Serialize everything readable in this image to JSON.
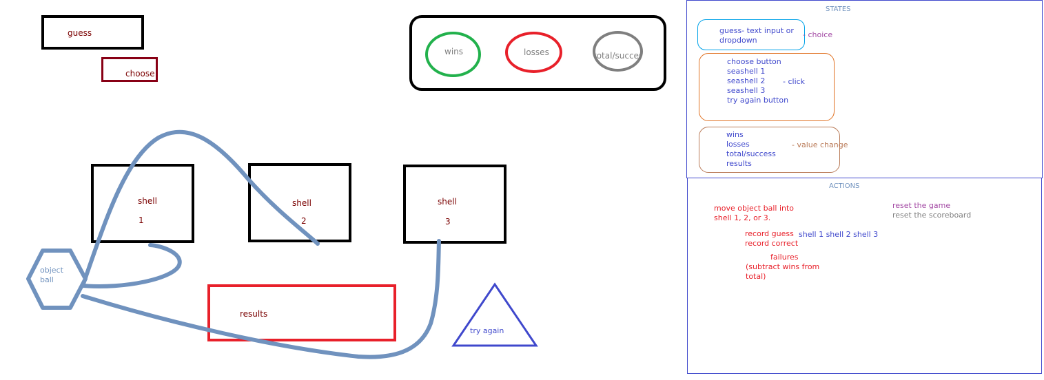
{
  "game": {
    "guess_label": "guess",
    "choose_label": "choose",
    "shells": [
      {
        "label": "shell",
        "number": "1"
      },
      {
        "label": "shell",
        "number": "2"
      },
      {
        "label": "shell",
        "number": "3"
      }
    ],
    "object_ball_label": "object\nball",
    "results_label": "results",
    "try_again_label": "try again"
  },
  "scoreboard": {
    "wins_label": "wins",
    "losses_label": "losses",
    "total_label": "total/success"
  },
  "states_panel": {
    "title": "STATES",
    "guess_group": {
      "text": "guess- text input or\ndropdown",
      "note": "- choice"
    },
    "click_group": {
      "text": "choose button\nseashell 1\nseashell 2\nseashell 3\ntry again button",
      "note": "- click"
    },
    "value_group": {
      "text": "wins\nlosses\ntotal/success\nresults",
      "note": "- value change"
    }
  },
  "actions_panel": {
    "title": "ACTIONS",
    "move_ball": "move object ball into\nshell 1, 2, or 3.",
    "reset_game": "reset the game",
    "reset_scoreboard": "reset the scoreboard",
    "record": "record guess\nrecord correct",
    "shells_list": "shell 1 shell 2 shell 3",
    "failures": "failures",
    "failures_detail": "(subtract wins from\ntotal)"
  },
  "colors": {
    "dark_red": "#7a0000",
    "red": "#e8202a",
    "green": "#22b14c",
    "gray": "#7f7f7f",
    "steel_blue": "#7092be",
    "blue": "#3f48cc",
    "teal": "#00a2e8",
    "orange": "#e07020",
    "brown": "#b97a57",
    "purple": "#a349a4"
  }
}
